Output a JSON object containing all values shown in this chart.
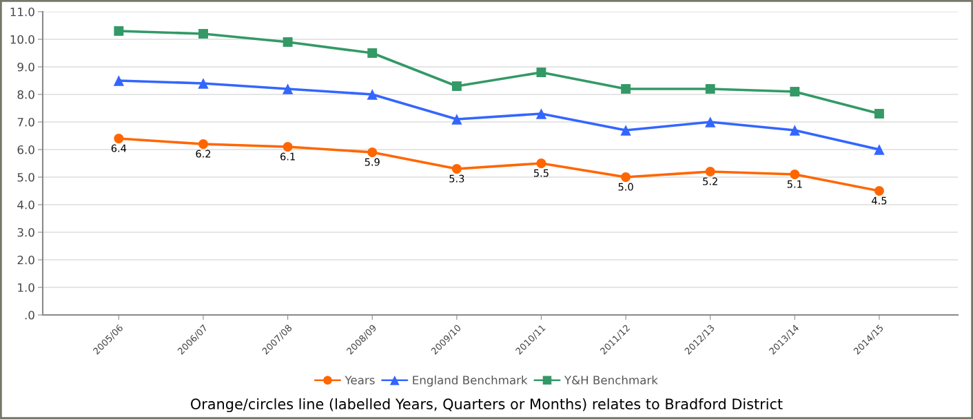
{
  "chart_data": {
    "type": "line",
    "categories": [
      "2005/06",
      "2006/07",
      "2007/08",
      "2008/09",
      "2009/10",
      "2010/11",
      "2011/12",
      "2012/13",
      "2013/14",
      "2014/15"
    ],
    "series": [
      {
        "name": "Years",
        "color": "#ff6600",
        "marker": "circle",
        "values": [
          6.4,
          6.2,
          6.1,
          5.9,
          5.3,
          5.5,
          5.0,
          5.2,
          5.1,
          4.5
        ],
        "value_labels": [
          "6.4",
          "6.2",
          "6.1",
          "5.9",
          "5.3",
          "5.5",
          "5.0",
          "5.2",
          "5.1",
          "4.5"
        ]
      },
      {
        "name": "England Benchmark",
        "color": "#3366ff",
        "marker": "triangle",
        "values": [
          8.5,
          8.4,
          8.2,
          8.0,
          7.1,
          7.3,
          6.7,
          7.0,
          6.7,
          6.0
        ]
      },
      {
        "name": "Y&H Benchmark",
        "color": "#339966",
        "marker": "square",
        "values": [
          10.3,
          10.2,
          9.9,
          9.5,
          8.3,
          8.8,
          8.2,
          8.2,
          8.1,
          7.3
        ]
      }
    ],
    "ylim": [
      0,
      11
    ],
    "yticks": [
      {
        "value": 0,
        "label": ".0"
      },
      {
        "value": 1,
        "label": "1.0"
      },
      {
        "value": 2,
        "label": "2.0"
      },
      {
        "value": 3,
        "label": "3.0"
      },
      {
        "value": 4,
        "label": "4.0"
      },
      {
        "value": 5,
        "label": "5.0"
      },
      {
        "value": 6,
        "label": "6.0"
      },
      {
        "value": 7,
        "label": "7.0"
      },
      {
        "value": 8,
        "label": "8.0"
      },
      {
        "value": 9,
        "label": "9.0"
      },
      {
        "value": 10,
        "label": "10.0"
      },
      {
        "value": 11,
        "label": "11.0"
      }
    ],
    "grid": "y",
    "legend": "bottom",
    "line_style": "solid",
    "annotations": [
      "Orange/circles line (labelled Years, Quarters or Months) relates to Bradford District"
    ]
  }
}
